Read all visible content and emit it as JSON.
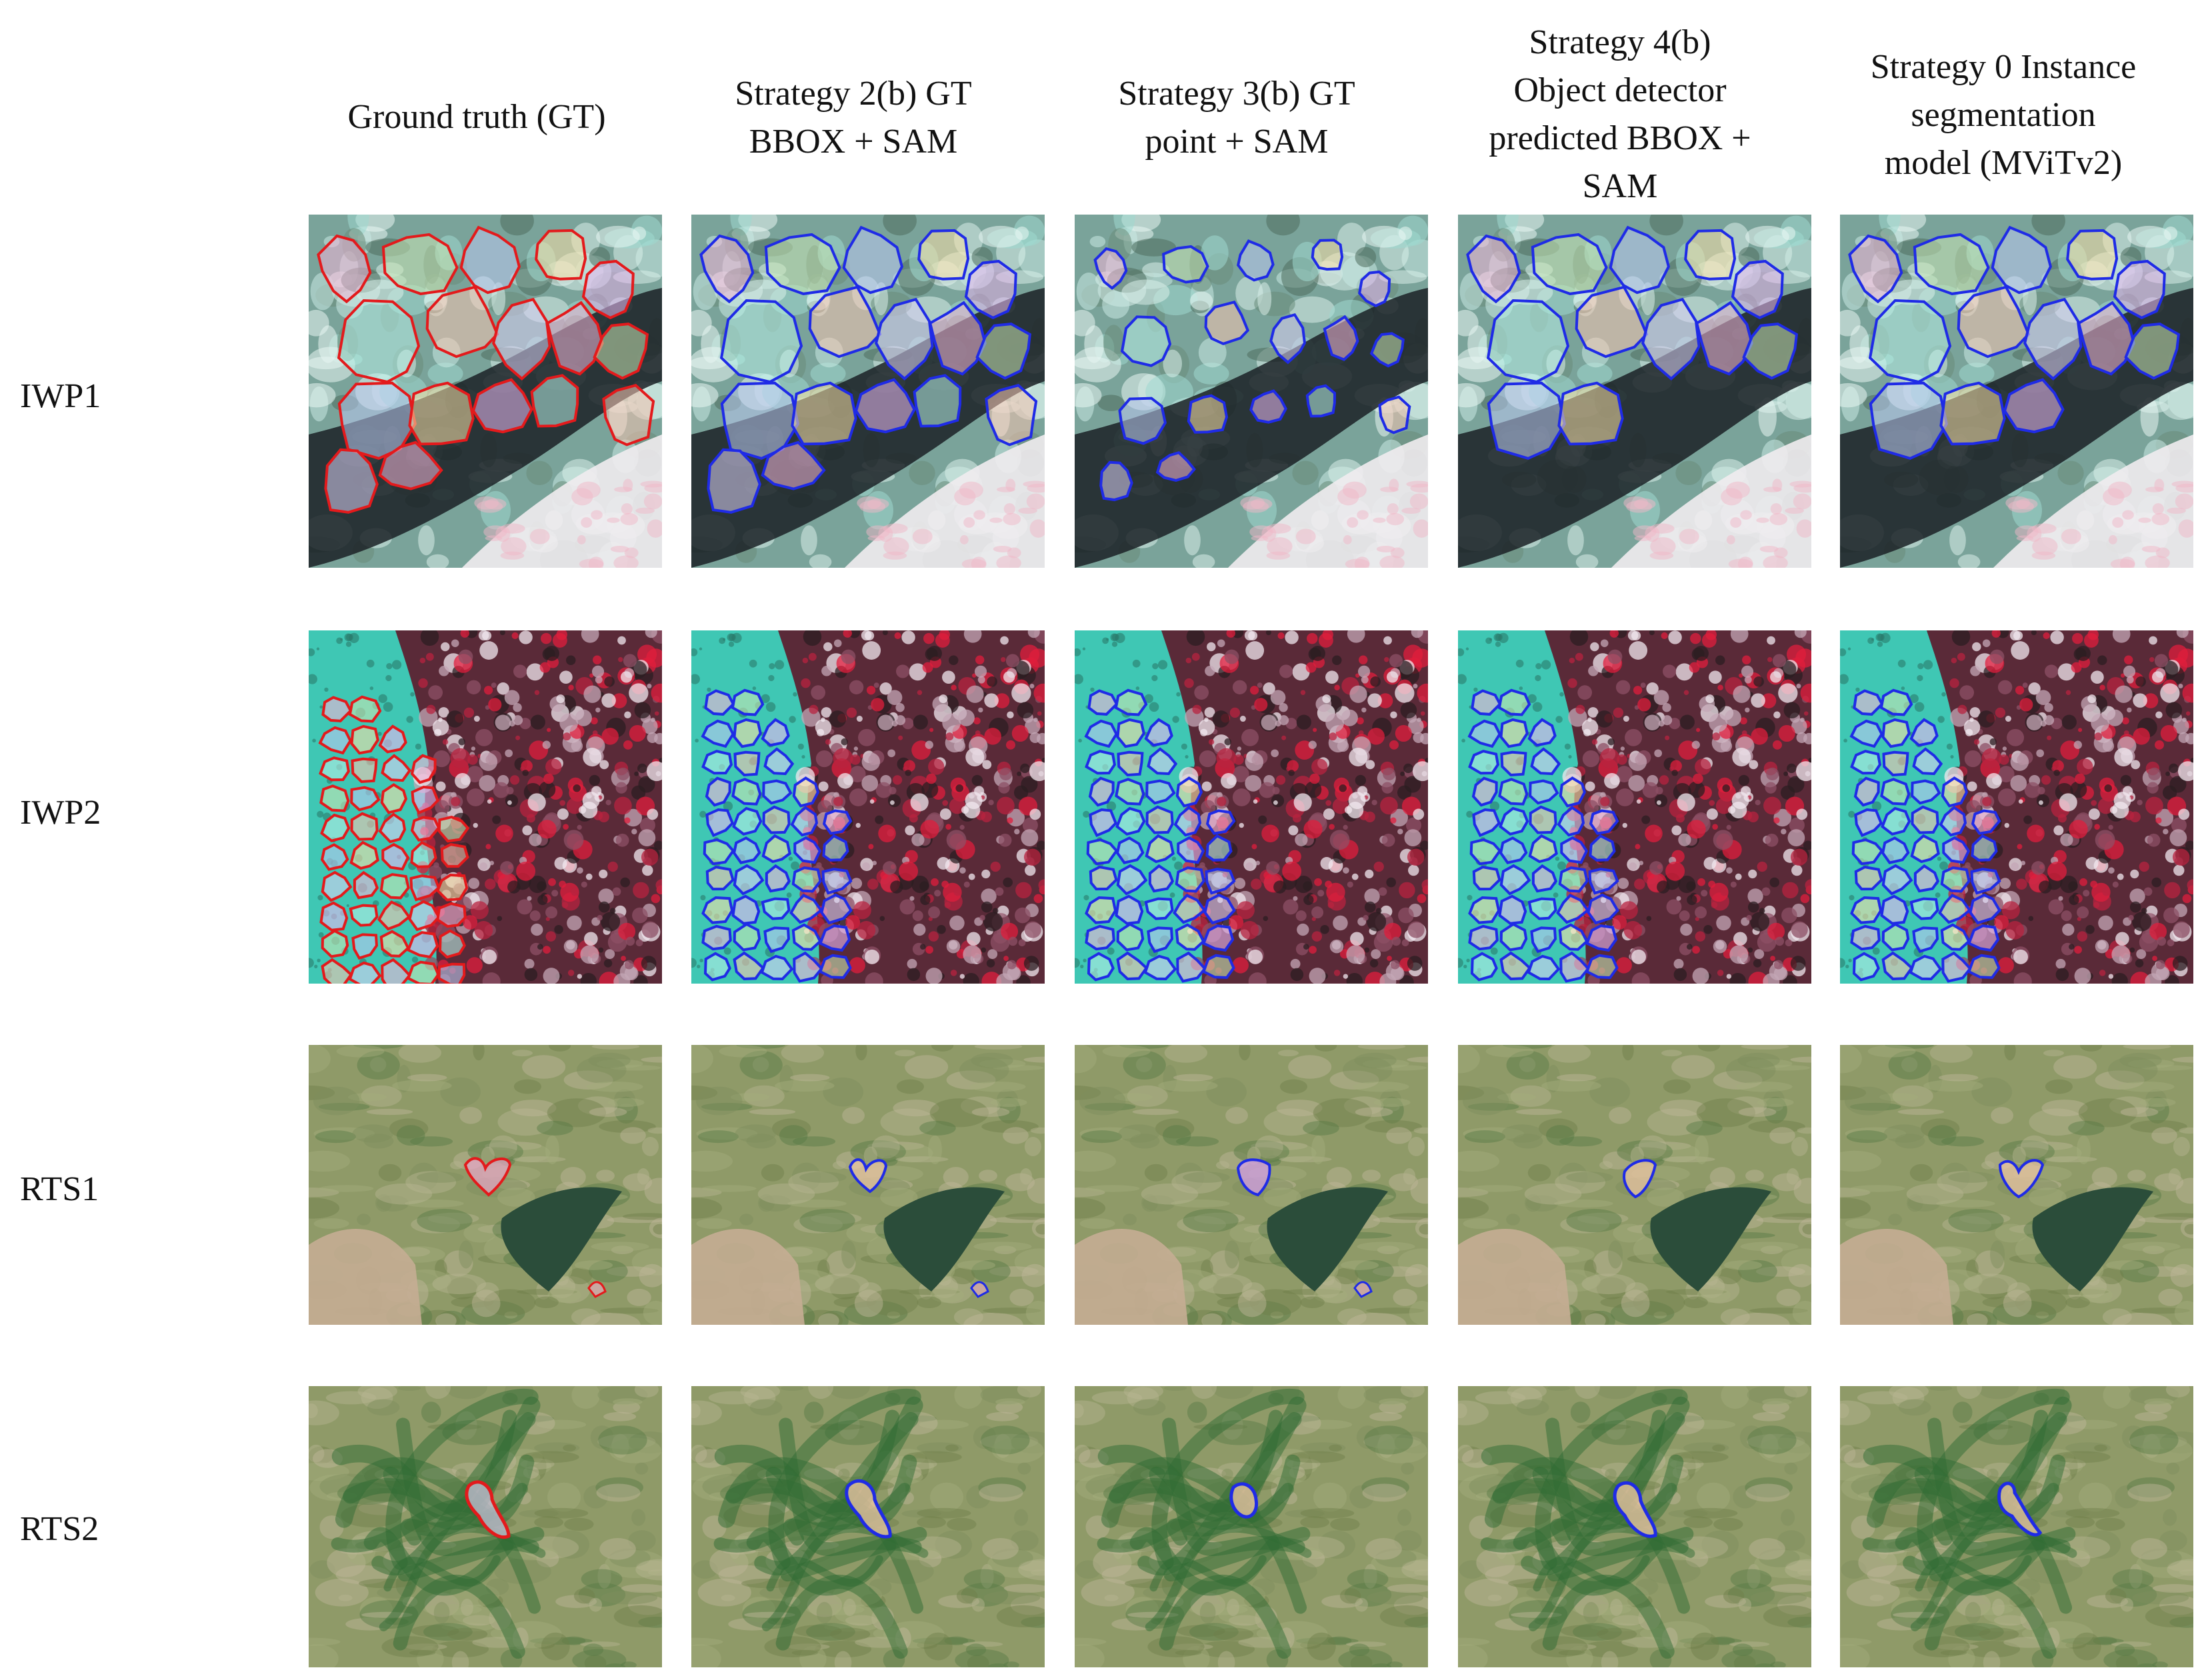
{
  "columns": [
    {
      "id": "gt",
      "lines": [
        "Ground truth (GT)"
      ],
      "outline_color": "#e31a1c"
    },
    {
      "id": "s2b",
      "lines": [
        "Strategy 2(b) GT",
        "BBOX + SAM"
      ],
      "outline_color": "#1f2be6"
    },
    {
      "id": "s3b",
      "lines": [
        "Strategy 3(b) GT",
        "point + SAM"
      ],
      "outline_color": "#1f2be6"
    },
    {
      "id": "s4b",
      "lines": [
        "Strategy 4(b)",
        "Object detector",
        "predicted BBOX +",
        "SAM"
      ],
      "outline_color": "#1f2be6"
    },
    {
      "id": "s0",
      "lines": [
        "Strategy 0 Instance",
        "segmentation",
        "model (MViTv2)"
      ],
      "outline_color": "#1f2be6"
    }
  ],
  "rows": [
    {
      "id": "iwp1",
      "label": "IWP1",
      "scene": "ice-wedge polygons, false-color"
    },
    {
      "id": "iwp2",
      "label": "IWP2",
      "scene": "ice-wedge polygons, false-color"
    },
    {
      "id": "rts1",
      "label": "RTS1",
      "scene": "retrogressive thaw slump, true-color"
    },
    {
      "id": "rts2",
      "label": "RTS2",
      "scene": "retrogressive thaw slump, true-color"
    }
  ]
}
